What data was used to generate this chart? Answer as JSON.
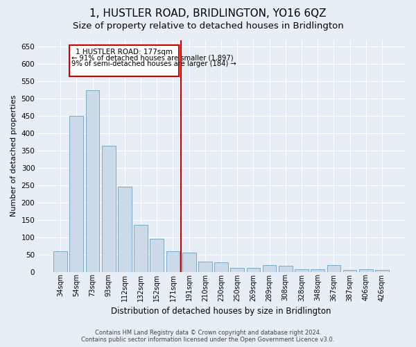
{
  "title": "1, HUSTLER ROAD, BRIDLINGTON, YO16 6QZ",
  "subtitle": "Size of property relative to detached houses in Bridlington",
  "xlabel": "Distribution of detached houses by size in Bridlington",
  "ylabel": "Number of detached properties",
  "footer_line1": "Contains HM Land Registry data © Crown copyright and database right 2024.",
  "footer_line2": "Contains public sector information licensed under the Open Government Licence v3.0.",
  "categories": [
    "34sqm",
    "54sqm",
    "73sqm",
    "93sqm",
    "112sqm",
    "132sqm",
    "152sqm",
    "171sqm",
    "191sqm",
    "210sqm",
    "230sqm",
    "250sqm",
    "269sqm",
    "289sqm",
    "308sqm",
    "328sqm",
    "348sqm",
    "367sqm",
    "387sqm",
    "406sqm",
    "426sqm"
  ],
  "values": [
    60,
    450,
    525,
    365,
    245,
    135,
    95,
    60,
    55,
    30,
    28,
    12,
    12,
    20,
    18,
    8,
    8,
    20,
    5,
    8,
    5
  ],
  "bar_color": "#ccd9e8",
  "bar_edge_color": "#7aaac8",
  "vline_index": 7,
  "vline_color": "#cc0000",
  "annotation_box_color": "#cc0000",
  "annotation_text_line1": "1 HUSTLER ROAD: 177sqm",
  "annotation_text_line2": "← 91% of detached houses are smaller (1,897)",
  "annotation_text_line3": "9% of semi-detached houses are larger (184) →",
  "ylim": [
    0,
    670
  ],
  "yticks": [
    0,
    50,
    100,
    150,
    200,
    250,
    300,
    350,
    400,
    450,
    500,
    550,
    600,
    650
  ],
  "background_color": "#e8eef5",
  "plot_bg_color": "#e8eef5",
  "grid_color": "#ffffff",
  "title_fontsize": 11,
  "subtitle_fontsize": 9.5
}
